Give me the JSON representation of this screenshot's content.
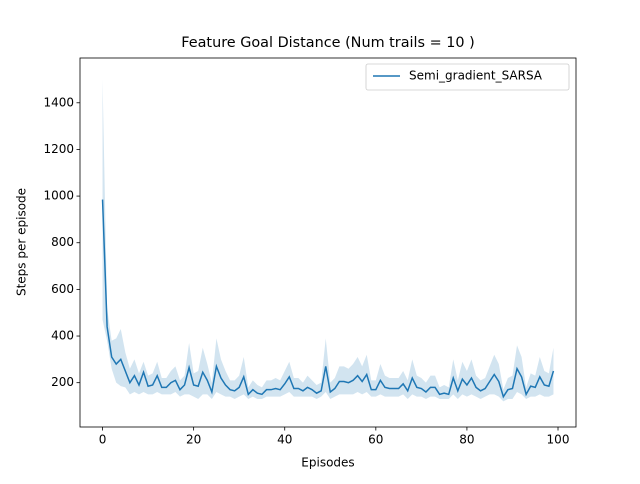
{
  "chart_data": {
    "type": "line",
    "title": "Feature Goal Distance (Num trails = 10 )",
    "x_label": "Episodes",
    "y_label": "Steps per episode",
    "x": [
      0,
      1,
      2,
      3,
      4,
      5,
      6,
      7,
      8,
      9,
      10,
      11,
      12,
      13,
      14,
      15,
      16,
      17,
      18,
      19,
      20,
      21,
      22,
      23,
      24,
      25,
      26,
      27,
      28,
      29,
      30,
      31,
      32,
      33,
      34,
      35,
      36,
      37,
      38,
      39,
      40,
      41,
      42,
      43,
      44,
      45,
      46,
      47,
      48,
      49,
      50,
      51,
      52,
      53,
      54,
      55,
      56,
      57,
      58,
      59,
      60,
      61,
      62,
      63,
      64,
      65,
      66,
      67,
      68,
      69,
      70,
      71,
      72,
      73,
      74,
      75,
      76,
      77,
      78,
      79,
      80,
      81,
      82,
      83,
      84,
      85,
      86,
      87,
      88,
      89,
      90,
      91,
      92,
      93,
      94,
      95,
      96,
      97,
      98,
      99
    ],
    "series": [
      {
        "name": "Semi_gradient_SARSA",
        "color": "#1f77b4",
        "band_color": "#1f77b4",
        "values": [
          985,
          440,
          310,
          280,
          300,
          250,
          200,
          230,
          190,
          245,
          185,
          190,
          230,
          180,
          180,
          200,
          210,
          170,
          190,
          265,
          190,
          185,
          245,
          210,
          160,
          270,
          220,
          190,
          170,
          165,
          180,
          225,
          150,
          170,
          155,
          150,
          170,
          170,
          175,
          170,
          195,
          225,
          175,
          175,
          165,
          180,
          170,
          155,
          165,
          270,
          160,
          175,
          205,
          205,
          200,
          210,
          230,
          205,
          235,
          170,
          170,
          210,
          180,
          175,
          175,
          175,
          195,
          165,
          220,
          180,
          175,
          160,
          180,
          180,
          150,
          155,
          150,
          220,
          165,
          215,
          190,
          220,
          180,
          165,
          175,
          205,
          235,
          205,
          140,
          170,
          175,
          260,
          225,
          150,
          185,
          180,
          225,
          190,
          185,
          250
        ],
        "band_lower": [
          470,
          380,
          260,
          200,
          185,
          180,
          150,
          160,
          150,
          160,
          150,
          150,
          160,
          150,
          150,
          150,
          160,
          140,
          150,
          150,
          140,
          130,
          150,
          150,
          130,
          160,
          150,
          140,
          140,
          130,
          140,
          150,
          130,
          140,
          130,
          130,
          140,
          140,
          140,
          140,
          150,
          160,
          140,
          140,
          140,
          140,
          140,
          130,
          140,
          160,
          130,
          140,
          150,
          150,
          150,
          150,
          160,
          150,
          160,
          140,
          140,
          150,
          140,
          140,
          140,
          140,
          150,
          130,
          150,
          140,
          140,
          130,
          140,
          140,
          130,
          130,
          130,
          150,
          130,
          150,
          140,
          150,
          140,
          130,
          140,
          150,
          150,
          140,
          120,
          130,
          130,
          160,
          150,
          130,
          140,
          140,
          150,
          140,
          140,
          150
        ],
        "band_upper": [
          1500,
          520,
          380,
          390,
          430,
          330,
          260,
          300,
          240,
          290,
          230,
          240,
          290,
          220,
          220,
          250,
          270,
          210,
          230,
          370,
          240,
          250,
          350,
          280,
          200,
          390,
          300,
          250,
          210,
          210,
          230,
          310,
          180,
          210,
          190,
          180,
          210,
          210,
          220,
          210,
          250,
          290,
          220,
          220,
          200,
          230,
          210,
          190,
          200,
          390,
          200,
          220,
          270,
          270,
          260,
          280,
          310,
          270,
          320,
          210,
          210,
          280,
          230,
          220,
          220,
          220,
          250,
          210,
          300,
          230,
          220,
          200,
          230,
          230,
          180,
          190,
          180,
          300,
          210,
          290,
          250,
          300,
          230,
          210,
          220,
          270,
          320,
          280,
          170,
          220,
          230,
          360,
          310,
          180,
          240,
          230,
          310,
          250,
          240,
          350
        ]
      }
    ],
    "xlim": [
      -4.95,
      103.95
    ],
    "ylim": [
      10,
      1592
    ],
    "xticks": [
      0,
      20,
      40,
      60,
      80,
      100
    ],
    "yticks": [
      200,
      400,
      600,
      800,
      1000,
      1200,
      1400
    ],
    "legend": "upper right"
  }
}
